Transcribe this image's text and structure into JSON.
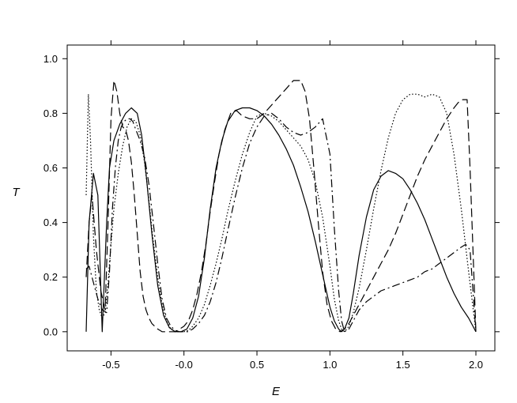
{
  "chart_data": {
    "type": "line",
    "xlabel": "E",
    "ylabel": "T",
    "xlim": [
      -0.8,
      2.13
    ],
    "ylim": [
      -0.07,
      1.05
    ],
    "xticks": [
      -0.5,
      0.0,
      0.5,
      1.0,
      1.5,
      2.0
    ],
    "xtick_labels": [
      "-0.5",
      "-0.0",
      "0.5",
      "1.0",
      "1.5",
      "2.0"
    ],
    "yticks": [
      0.0,
      0.2,
      0.4,
      0.6,
      0.8,
      1.0
    ],
    "ytick_labels": [
      "0.0",
      "0.2",
      "0.4",
      "0.6",
      "0.8",
      "1.0"
    ],
    "grid": false,
    "series": [
      {
        "style": "solid",
        "color": "#000000",
        "x": [
          -0.67,
          -0.65,
          -0.62,
          -0.59,
          -0.56,
          -0.53,
          -0.51,
          -0.48,
          -0.44,
          -0.4,
          -0.36,
          -0.32,
          -0.29,
          -0.26,
          -0.22,
          -0.18,
          -0.14,
          -0.1,
          -0.06,
          -0.02,
          0.02,
          0.06,
          0.1,
          0.14,
          0.18,
          0.22,
          0.26,
          0.3,
          0.35,
          0.4,
          0.45,
          0.5,
          0.55,
          0.6,
          0.65,
          0.7,
          0.75,
          0.8,
          0.85,
          0.9,
          0.95,
          1.0,
          1.03,
          1.06,
          1.08,
          1.1,
          1.13,
          1.16,
          1.2,
          1.25,
          1.3,
          1.35,
          1.4,
          1.45,
          1.5,
          1.55,
          1.6,
          1.65,
          1.7,
          1.75,
          1.8,
          1.85,
          1.9,
          1.95,
          1.98,
          2.0
        ],
        "y": [
          0.0,
          0.4,
          0.58,
          0.5,
          0.0,
          0.4,
          0.6,
          0.7,
          0.76,
          0.8,
          0.82,
          0.8,
          0.72,
          0.58,
          0.36,
          0.17,
          0.06,
          0.015,
          0.0,
          0.0,
          0.01,
          0.05,
          0.13,
          0.27,
          0.45,
          0.6,
          0.7,
          0.77,
          0.81,
          0.82,
          0.82,
          0.81,
          0.79,
          0.76,
          0.72,
          0.67,
          0.61,
          0.53,
          0.44,
          0.33,
          0.21,
          0.09,
          0.04,
          0.01,
          0.0,
          0.01,
          0.05,
          0.14,
          0.28,
          0.42,
          0.52,
          0.57,
          0.59,
          0.58,
          0.56,
          0.52,
          0.47,
          0.41,
          0.34,
          0.27,
          0.2,
          0.14,
          0.09,
          0.05,
          0.02,
          0.0
        ]
      },
      {
        "style": "dashed",
        "color": "#000000",
        "x": [
          -0.67,
          -0.65,
          -0.63,
          -0.6,
          -0.57,
          -0.54,
          -0.52,
          -0.5,
          -0.48,
          -0.46,
          -0.44,
          -0.42,
          -0.4,
          -0.38,
          -0.36,
          -0.34,
          -0.32,
          -0.3,
          -0.28,
          -0.26,
          -0.24,
          -0.22,
          -0.2,
          -0.18,
          -0.15,
          -0.12,
          -0.09,
          -0.06,
          -0.03,
          0.0,
          0.03,
          0.06,
          0.09,
          0.12,
          0.15,
          0.18,
          0.21,
          0.24,
          0.28,
          0.32,
          0.36,
          0.4,
          0.45,
          0.5,
          0.55,
          0.6,
          0.65,
          0.7,
          0.75,
          0.8,
          0.83,
          0.86,
          0.89,
          0.92,
          0.95,
          0.98,
          1.01,
          1.04,
          1.07,
          1.1,
          1.13,
          1.16,
          1.2,
          1.25,
          1.3,
          1.35,
          1.4,
          1.45,
          1.5,
          1.55,
          1.6,
          1.65,
          1.7,
          1.75,
          1.8,
          1.85,
          1.88,
          1.91,
          1.94,
          1.96,
          1.98,
          2.0
        ],
        "y": [
          0.2,
          0.4,
          0.5,
          0.3,
          0.15,
          0.08,
          0.4,
          0.78,
          0.92,
          0.88,
          0.8,
          0.75,
          0.74,
          0.7,
          0.62,
          0.5,
          0.36,
          0.22,
          0.13,
          0.08,
          0.05,
          0.03,
          0.02,
          0.01,
          0.0,
          0.0,
          0.0,
          0.0,
          0.01,
          0.02,
          0.04,
          0.08,
          0.14,
          0.22,
          0.32,
          0.44,
          0.55,
          0.65,
          0.74,
          0.8,
          0.81,
          0.79,
          0.78,
          0.78,
          0.8,
          0.83,
          0.86,
          0.89,
          0.92,
          0.92,
          0.88,
          0.78,
          0.6,
          0.4,
          0.22,
          0.1,
          0.04,
          0.01,
          0.0,
          0.01,
          0.03,
          0.06,
          0.1,
          0.15,
          0.2,
          0.25,
          0.3,
          0.36,
          0.43,
          0.5,
          0.57,
          0.63,
          0.68,
          0.73,
          0.78,
          0.82,
          0.84,
          0.85,
          0.85,
          0.6,
          0.3,
          0.0
        ]
      },
      {
        "style": "dotted",
        "color": "#000000",
        "x": [
          -0.67,
          -0.655,
          -0.64,
          -0.62,
          -0.6,
          -0.58,
          -0.56,
          -0.54,
          -0.52,
          -0.5,
          -0.48,
          -0.45,
          -0.42,
          -0.39,
          -0.36,
          -0.33,
          -0.3,
          -0.27,
          -0.24,
          -0.21,
          -0.18,
          -0.15,
          -0.12,
          -0.09,
          -0.06,
          -0.03,
          0.0,
          0.03,
          0.06,
          0.1,
          0.14,
          0.18,
          0.22,
          0.26,
          0.3,
          0.35,
          0.4,
          0.45,
          0.5,
          0.55,
          0.6,
          0.65,
          0.7,
          0.75,
          0.8,
          0.85,
          0.9,
          0.95,
          1.0,
          1.03,
          1.06,
          1.08,
          1.1,
          1.13,
          1.16,
          1.2,
          1.25,
          1.3,
          1.35,
          1.4,
          1.45,
          1.5,
          1.55,
          1.6,
          1.65,
          1.7,
          1.75,
          1.8,
          1.85,
          1.9,
          1.95,
          2.0
        ],
        "y": [
          0.5,
          0.87,
          0.7,
          0.35,
          0.15,
          0.08,
          0.05,
          0.07,
          0.18,
          0.32,
          0.45,
          0.58,
          0.68,
          0.75,
          0.78,
          0.77,
          0.72,
          0.62,
          0.48,
          0.33,
          0.2,
          0.1,
          0.04,
          0.01,
          0.0,
          0.0,
          0.0,
          0.005,
          0.02,
          0.05,
          0.1,
          0.17,
          0.25,
          0.34,
          0.44,
          0.55,
          0.65,
          0.73,
          0.79,
          0.8,
          0.79,
          0.77,
          0.74,
          0.71,
          0.68,
          0.63,
          0.55,
          0.42,
          0.24,
          0.12,
          0.04,
          0.01,
          0.0,
          0.02,
          0.07,
          0.16,
          0.3,
          0.45,
          0.59,
          0.71,
          0.8,
          0.85,
          0.87,
          0.87,
          0.86,
          0.87,
          0.86,
          0.8,
          0.65,
          0.45,
          0.22,
          0.0
        ]
      },
      {
        "style": "dashdot",
        "color": "#000000",
        "x": [
          -0.67,
          -0.65,
          -0.62,
          -0.59,
          -0.56,
          -0.53,
          -0.51,
          -0.49,
          -0.47,
          -0.45,
          -0.43,
          -0.41,
          -0.39,
          -0.37,
          -0.35,
          -0.33,
          -0.3,
          -0.27,
          -0.24,
          -0.21,
          -0.18,
          -0.15,
          -0.12,
          -0.09,
          -0.06,
          -0.03,
          0.0,
          0.03,
          0.06,
          0.1,
          0.14,
          0.18,
          0.22,
          0.26,
          0.3,
          0.35,
          0.4,
          0.45,
          0.5,
          0.55,
          0.6,
          0.65,
          0.7,
          0.75,
          0.8,
          0.85,
          0.9,
          0.95,
          1.0,
          1.03,
          1.06,
          1.08,
          1.1,
          1.13,
          1.16,
          1.2,
          1.25,
          1.3,
          1.35,
          1.4,
          1.45,
          1.5,
          1.55,
          1.6,
          1.65,
          1.7,
          1.75,
          1.8,
          1.85,
          1.9,
          1.93,
          1.96,
          1.98,
          2.0
        ],
        "y": [
          0.23,
          0.24,
          0.18,
          0.12,
          0.08,
          0.07,
          0.22,
          0.45,
          0.6,
          0.7,
          0.75,
          0.77,
          0.78,
          0.78,
          0.77,
          0.74,
          0.7,
          0.64,
          0.54,
          0.4,
          0.25,
          0.12,
          0.05,
          0.02,
          0.005,
          0.0,
          0.0,
          0.0,
          0.01,
          0.03,
          0.06,
          0.11,
          0.18,
          0.27,
          0.37,
          0.49,
          0.6,
          0.69,
          0.75,
          0.79,
          0.8,
          0.78,
          0.75,
          0.73,
          0.72,
          0.73,
          0.75,
          0.78,
          0.65,
          0.38,
          0.15,
          0.04,
          0.0,
          0.01,
          0.04,
          0.08,
          0.11,
          0.13,
          0.15,
          0.16,
          0.17,
          0.18,
          0.19,
          0.2,
          0.22,
          0.23,
          0.25,
          0.27,
          0.29,
          0.31,
          0.32,
          0.3,
          0.15,
          0.0
        ]
      }
    ]
  }
}
